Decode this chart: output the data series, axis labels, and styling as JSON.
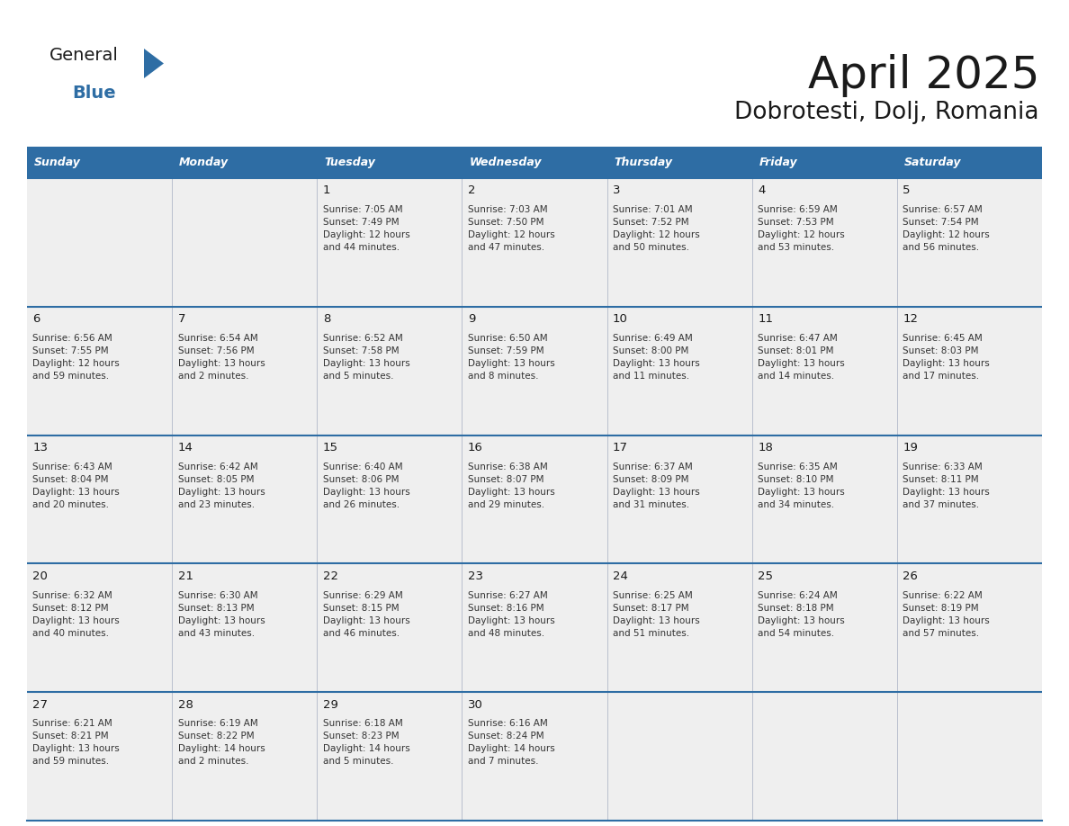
{
  "title": "April 2025",
  "subtitle": "Dobrotesti, Dolj, Romania",
  "header_bg_color": "#2E6DA4",
  "header_text_color": "#FFFFFF",
  "cell_bg_color": "#EFEFEF",
  "day_number_color": "#1a1a1a",
  "text_color": "#333333",
  "line_color": "#2E6DA4",
  "logo_general_color": "#1a1a1a",
  "logo_blue_color": "#2E6DA4",
  "logo_triangle_color": "#2E6DA4",
  "days_of_week": [
    "Sunday",
    "Monday",
    "Tuesday",
    "Wednesday",
    "Thursday",
    "Friday",
    "Saturday"
  ],
  "weeks": [
    [
      {
        "day": "",
        "sunrise": "",
        "sunset": "",
        "daylight": ""
      },
      {
        "day": "",
        "sunrise": "",
        "sunset": "",
        "daylight": ""
      },
      {
        "day": "1",
        "sunrise": "Sunrise: 7:05 AM",
        "sunset": "Sunset: 7:49 PM",
        "daylight": "Daylight: 12 hours\nand 44 minutes."
      },
      {
        "day": "2",
        "sunrise": "Sunrise: 7:03 AM",
        "sunset": "Sunset: 7:50 PM",
        "daylight": "Daylight: 12 hours\nand 47 minutes."
      },
      {
        "day": "3",
        "sunrise": "Sunrise: 7:01 AM",
        "sunset": "Sunset: 7:52 PM",
        "daylight": "Daylight: 12 hours\nand 50 minutes."
      },
      {
        "day": "4",
        "sunrise": "Sunrise: 6:59 AM",
        "sunset": "Sunset: 7:53 PM",
        "daylight": "Daylight: 12 hours\nand 53 minutes."
      },
      {
        "day": "5",
        "sunrise": "Sunrise: 6:57 AM",
        "sunset": "Sunset: 7:54 PM",
        "daylight": "Daylight: 12 hours\nand 56 minutes."
      }
    ],
    [
      {
        "day": "6",
        "sunrise": "Sunrise: 6:56 AM",
        "sunset": "Sunset: 7:55 PM",
        "daylight": "Daylight: 12 hours\nand 59 minutes."
      },
      {
        "day": "7",
        "sunrise": "Sunrise: 6:54 AM",
        "sunset": "Sunset: 7:56 PM",
        "daylight": "Daylight: 13 hours\nand 2 minutes."
      },
      {
        "day": "8",
        "sunrise": "Sunrise: 6:52 AM",
        "sunset": "Sunset: 7:58 PM",
        "daylight": "Daylight: 13 hours\nand 5 minutes."
      },
      {
        "day": "9",
        "sunrise": "Sunrise: 6:50 AM",
        "sunset": "Sunset: 7:59 PM",
        "daylight": "Daylight: 13 hours\nand 8 minutes."
      },
      {
        "day": "10",
        "sunrise": "Sunrise: 6:49 AM",
        "sunset": "Sunset: 8:00 PM",
        "daylight": "Daylight: 13 hours\nand 11 minutes."
      },
      {
        "day": "11",
        "sunrise": "Sunrise: 6:47 AM",
        "sunset": "Sunset: 8:01 PM",
        "daylight": "Daylight: 13 hours\nand 14 minutes."
      },
      {
        "day": "12",
        "sunrise": "Sunrise: 6:45 AM",
        "sunset": "Sunset: 8:03 PM",
        "daylight": "Daylight: 13 hours\nand 17 minutes."
      }
    ],
    [
      {
        "day": "13",
        "sunrise": "Sunrise: 6:43 AM",
        "sunset": "Sunset: 8:04 PM",
        "daylight": "Daylight: 13 hours\nand 20 minutes."
      },
      {
        "day": "14",
        "sunrise": "Sunrise: 6:42 AM",
        "sunset": "Sunset: 8:05 PM",
        "daylight": "Daylight: 13 hours\nand 23 minutes."
      },
      {
        "day": "15",
        "sunrise": "Sunrise: 6:40 AM",
        "sunset": "Sunset: 8:06 PM",
        "daylight": "Daylight: 13 hours\nand 26 minutes."
      },
      {
        "day": "16",
        "sunrise": "Sunrise: 6:38 AM",
        "sunset": "Sunset: 8:07 PM",
        "daylight": "Daylight: 13 hours\nand 29 minutes."
      },
      {
        "day": "17",
        "sunrise": "Sunrise: 6:37 AM",
        "sunset": "Sunset: 8:09 PM",
        "daylight": "Daylight: 13 hours\nand 31 minutes."
      },
      {
        "day": "18",
        "sunrise": "Sunrise: 6:35 AM",
        "sunset": "Sunset: 8:10 PM",
        "daylight": "Daylight: 13 hours\nand 34 minutes."
      },
      {
        "day": "19",
        "sunrise": "Sunrise: 6:33 AM",
        "sunset": "Sunset: 8:11 PM",
        "daylight": "Daylight: 13 hours\nand 37 minutes."
      }
    ],
    [
      {
        "day": "20",
        "sunrise": "Sunrise: 6:32 AM",
        "sunset": "Sunset: 8:12 PM",
        "daylight": "Daylight: 13 hours\nand 40 minutes."
      },
      {
        "day": "21",
        "sunrise": "Sunrise: 6:30 AM",
        "sunset": "Sunset: 8:13 PM",
        "daylight": "Daylight: 13 hours\nand 43 minutes."
      },
      {
        "day": "22",
        "sunrise": "Sunrise: 6:29 AM",
        "sunset": "Sunset: 8:15 PM",
        "daylight": "Daylight: 13 hours\nand 46 minutes."
      },
      {
        "day": "23",
        "sunrise": "Sunrise: 6:27 AM",
        "sunset": "Sunset: 8:16 PM",
        "daylight": "Daylight: 13 hours\nand 48 minutes."
      },
      {
        "day": "24",
        "sunrise": "Sunrise: 6:25 AM",
        "sunset": "Sunset: 8:17 PM",
        "daylight": "Daylight: 13 hours\nand 51 minutes."
      },
      {
        "day": "25",
        "sunrise": "Sunrise: 6:24 AM",
        "sunset": "Sunset: 8:18 PM",
        "daylight": "Daylight: 13 hours\nand 54 minutes."
      },
      {
        "day": "26",
        "sunrise": "Sunrise: 6:22 AM",
        "sunset": "Sunset: 8:19 PM",
        "daylight": "Daylight: 13 hours\nand 57 minutes."
      }
    ],
    [
      {
        "day": "27",
        "sunrise": "Sunrise: 6:21 AM",
        "sunset": "Sunset: 8:21 PM",
        "daylight": "Daylight: 13 hours\nand 59 minutes."
      },
      {
        "day": "28",
        "sunrise": "Sunrise: 6:19 AM",
        "sunset": "Sunset: 8:22 PM",
        "daylight": "Daylight: 14 hours\nand 2 minutes."
      },
      {
        "day": "29",
        "sunrise": "Sunrise: 6:18 AM",
        "sunset": "Sunset: 8:23 PM",
        "daylight": "Daylight: 14 hours\nand 5 minutes."
      },
      {
        "day": "30",
        "sunrise": "Sunrise: 6:16 AM",
        "sunset": "Sunset: 8:24 PM",
        "daylight": "Daylight: 14 hours\nand 7 minutes."
      },
      {
        "day": "",
        "sunrise": "",
        "sunset": "",
        "daylight": ""
      },
      {
        "day": "",
        "sunrise": "",
        "sunset": "",
        "daylight": ""
      },
      {
        "day": "",
        "sunrise": "",
        "sunset": "",
        "daylight": ""
      }
    ]
  ]
}
